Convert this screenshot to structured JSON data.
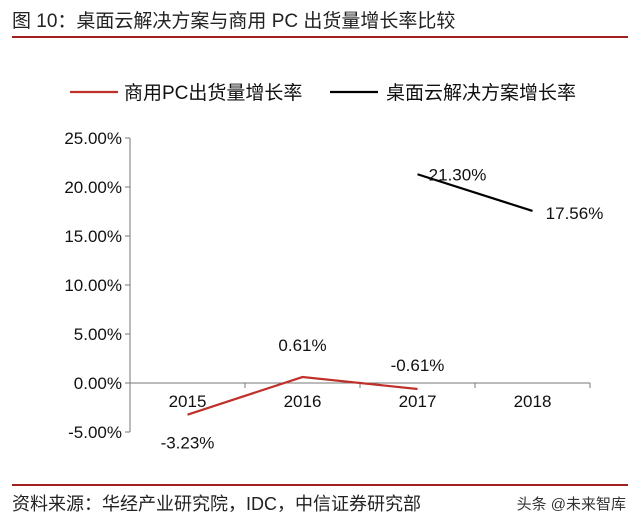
{
  "title": "图 10：桌面云解决方案与商用 PC 出货量增长率比较",
  "source": "资料来源：华经产业研究院，IDC，中信证券研究部",
  "watermark": "头条 @未来智库",
  "colors": {
    "accent_rule": "#a02020",
    "pc_series": "#c0302a",
    "cloud_series": "#000000"
  },
  "chart_data": {
    "type": "line",
    "categories": [
      "2015",
      "2016",
      "2017",
      "2018"
    ],
    "ylim": [
      -5,
      25
    ],
    "yticks": [
      "-5.00%",
      "0.00%",
      "5.00%",
      "10.00%",
      "15.00%",
      "20.00%",
      "25.00%"
    ],
    "ytick_values": [
      -5,
      0,
      5,
      10,
      15,
      20,
      25
    ],
    "grid": false,
    "legend_position": "top",
    "series": [
      {
        "name": "商用PC出货量增长率",
        "color": "#c0302a",
        "values": [
          -3.23,
          0.61,
          -0.61,
          null
        ],
        "labels": [
          "-3.23%",
          "0.61%",
          "-0.61%",
          null
        ]
      },
      {
        "name": "桌面云解决方案增长率",
        "color": "#000000",
        "values": [
          null,
          null,
          21.3,
          17.56
        ],
        "labels": [
          null,
          null,
          "21.30%",
          "17.56%"
        ]
      }
    ]
  }
}
